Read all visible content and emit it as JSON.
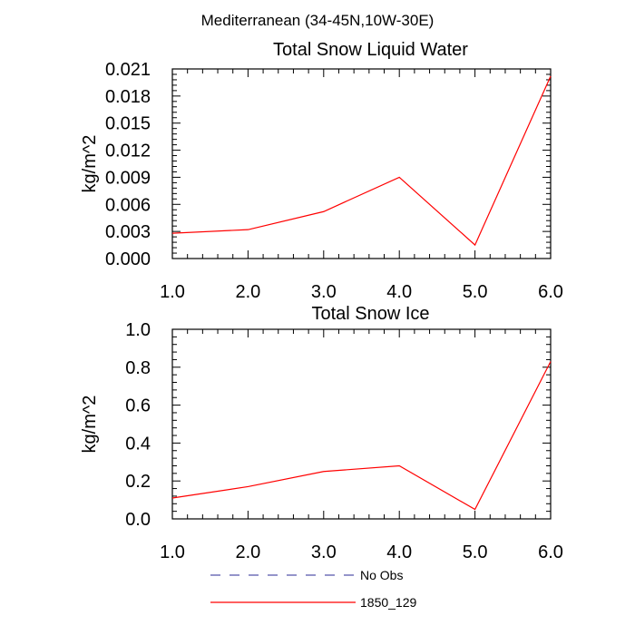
{
  "figure": {
    "title": "Mediterranean (34-45N,10W-30E)"
  },
  "chart_data": [
    {
      "type": "line",
      "title": "Total Snow Liquid Water",
      "xlabel": "",
      "ylabel": "kg/m^2",
      "x": [
        1.0,
        2.0,
        3.0,
        4.0,
        5.0,
        6.0
      ],
      "xticks": [
        "1.0",
        "2.0",
        "3.0",
        "4.0",
        "5.0",
        "6.0"
      ],
      "xlim": [
        1.0,
        6.0
      ],
      "ylim": [
        0.0,
        0.021
      ],
      "yticks": [
        "0.000",
        "0.003",
        "0.006",
        "0.009",
        "0.012",
        "0.015",
        "0.018",
        "0.021"
      ],
      "series": [
        {
          "name": "1850_129",
          "color": "#ff0000",
          "values": [
            0.0028,
            0.0032,
            0.0052,
            0.009,
            0.0015,
            0.0202
          ]
        }
      ],
      "grid": false
    },
    {
      "type": "line",
      "title": "Total Snow Ice",
      "xlabel": "",
      "ylabel": "kg/m^2",
      "x": [
        1.0,
        2.0,
        3.0,
        4.0,
        5.0,
        6.0
      ],
      "xticks": [
        "1.0",
        "2.0",
        "3.0",
        "4.0",
        "5.0",
        "6.0"
      ],
      "xlim": [
        1.0,
        6.0
      ],
      "ylim": [
        0.0,
        1.0
      ],
      "yticks": [
        "0.0",
        "0.2",
        "0.4",
        "0.6",
        "0.8",
        "1.0"
      ],
      "series": [
        {
          "name": "1850_129",
          "color": "#ff0000",
          "values": [
            0.11,
            0.17,
            0.25,
            0.28,
            0.05,
            0.83
          ]
        }
      ],
      "grid": false
    }
  ],
  "legend": {
    "placement": "bottom",
    "entries": [
      {
        "label": "No Obs",
        "color": "#5555aa",
        "style": "dashed"
      },
      {
        "label": "1850_129",
        "color": "#ff0000",
        "style": "solid"
      }
    ]
  }
}
